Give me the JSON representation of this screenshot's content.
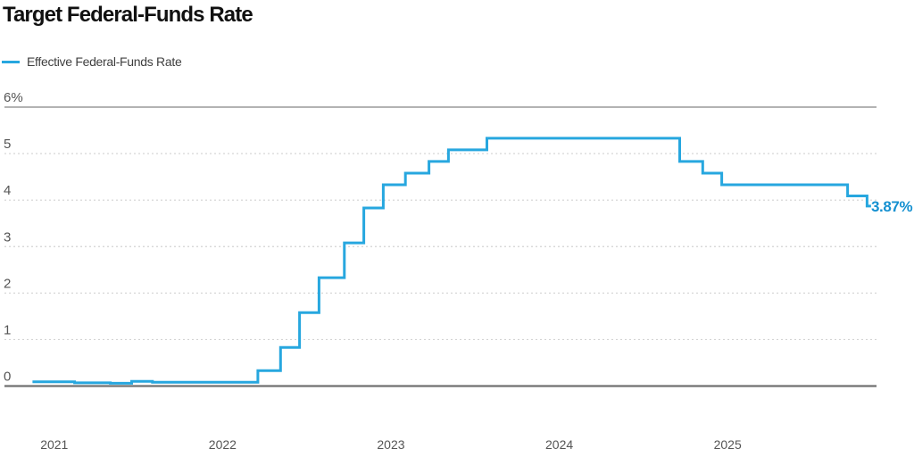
{
  "header": {
    "title": "Target Federal-Funds Rate"
  },
  "legend": {
    "label": "Effective Federal-Funds Rate"
  },
  "colors": {
    "line": "#27a7df",
    "end_label": "#1590d0",
    "title_text": "#111111",
    "tick_text": "#555555",
    "grid_dotted": "#d2d2d2",
    "grid_top": "#9a9a9a",
    "axis_zero": "#707070",
    "background": "#ffffff"
  },
  "chart_data": {
    "type": "line",
    "subtype": "step",
    "title": "Target Federal-Funds Rate",
    "xlabel": "",
    "ylabel": "",
    "legend_position": "top-left",
    "grid": "horizontal",
    "ylim": [
      0,
      6
    ],
    "xlim_dates": [
      "2020-09-15",
      "2025-11-20"
    ],
    "end_label": "3.87%",
    "y_ticks": [
      {
        "value": 6,
        "label": "6%"
      },
      {
        "value": 5,
        "label": "5"
      },
      {
        "value": 4,
        "label": "4"
      },
      {
        "value": 3,
        "label": "3"
      },
      {
        "value": 2,
        "label": "2"
      },
      {
        "value": 1,
        "label": "1"
      },
      {
        "value": 0,
        "label": "0"
      }
    ],
    "x_ticks": [
      {
        "year": 2021,
        "label": "2021"
      },
      {
        "year": 2022,
        "label": "2022"
      },
      {
        "year": 2023,
        "label": "2023"
      },
      {
        "year": 2024,
        "label": "2024"
      },
      {
        "year": 2025,
        "label": "2025"
      }
    ],
    "series": [
      {
        "name": "Effective Federal-Funds Rate",
        "color": "#27a7df",
        "end_date": "2025-11-08",
        "points": [
          {
            "date": "2020-11-15",
            "value": 0.09
          },
          {
            "date": "2021-02-15",
            "value": 0.07
          },
          {
            "date": "2021-05-01",
            "value": 0.06
          },
          {
            "date": "2021-06-17",
            "value": 0.1
          },
          {
            "date": "2021-08-01",
            "value": 0.08
          },
          {
            "date": "2022-03-17",
            "value": 0.33
          },
          {
            "date": "2022-05-05",
            "value": 0.83
          },
          {
            "date": "2022-06-16",
            "value": 1.58
          },
          {
            "date": "2022-07-28",
            "value": 2.33
          },
          {
            "date": "2022-09-22",
            "value": 3.08
          },
          {
            "date": "2022-11-03",
            "value": 3.83
          },
          {
            "date": "2022-12-15",
            "value": 4.33
          },
          {
            "date": "2023-02-02",
            "value": 4.58
          },
          {
            "date": "2023-03-23",
            "value": 4.83
          },
          {
            "date": "2023-05-04",
            "value": 5.08
          },
          {
            "date": "2023-07-27",
            "value": 5.33
          },
          {
            "date": "2024-09-19",
            "value": 4.83
          },
          {
            "date": "2024-11-08",
            "value": 4.58
          },
          {
            "date": "2024-12-19",
            "value": 4.33
          },
          {
            "date": "2025-09-18",
            "value": 4.09
          },
          {
            "date": "2025-10-30",
            "value": 3.87
          }
        ]
      }
    ]
  }
}
